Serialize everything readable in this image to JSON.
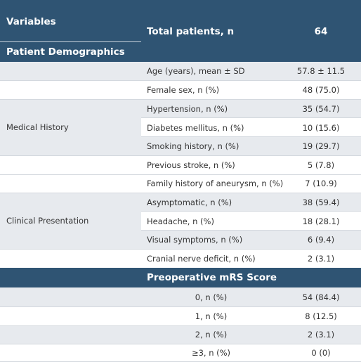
{
  "header": {
    "variables": "Variables",
    "total_label": "Total patients, n",
    "total_value": "64",
    "demographics": "Patient Demographics",
    "preop_title": "Preoperative mRS Score"
  },
  "groups": {
    "medical_history": "Medical History",
    "clinical_presentation": "Clinical Presentation"
  },
  "rows": [
    {
      "label": "Age (years), mean ± SD",
      "value": "57.8 ± 11.5"
    },
    {
      "label": "Female sex, n (%)",
      "value": "48 (75.0)"
    },
    {
      "label": "Hypertension, n (%)",
      "value": "35 (54.7)"
    },
    {
      "label": "Diabetes mellitus, n (%)",
      "value": "10 (15.6)"
    },
    {
      "label": "Smoking history, n (%)",
      "value": "19 (29.7)"
    },
    {
      "label": "Previous stroke, n (%)",
      "value": "5 (7.8)"
    },
    {
      "label": "Family history of aneurysm, n (%)",
      "value": "7 (10.9)"
    },
    {
      "label": "Asymptomatic, n (%)",
      "value": "38 (59.4)"
    },
    {
      "label": "Headache, n (%)",
      "value": "18 (28.1)"
    },
    {
      "label": "Visual symptoms, n (%)",
      "value": "6 (9.4)"
    },
    {
      "label": "Cranial nerve deficit, n (%)",
      "value": "2 (3.1)"
    }
  ],
  "mrs_rows": [
    {
      "label": "0, n (%)",
      "value": "54 (84.4)"
    },
    {
      "label": "1, n (%)",
      "value": "8 (12.5)"
    },
    {
      "label": "2, n (%)",
      "value": "2 (3.1)"
    },
    {
      "label": "≥3, n (%)",
      "value": "0 (0)"
    }
  ],
  "colors": {
    "header_bg": "#2f5473",
    "stripe_bg": "#e7eaee"
  }
}
